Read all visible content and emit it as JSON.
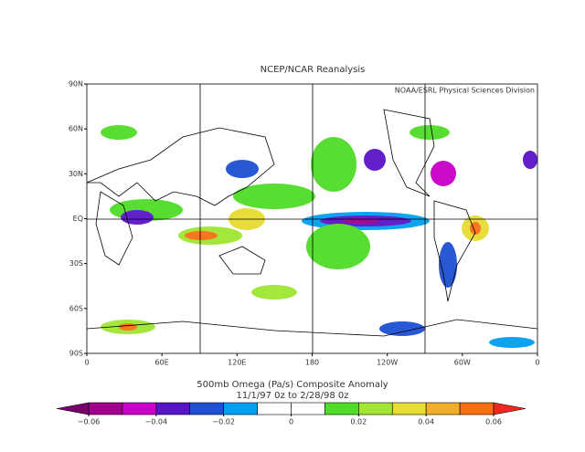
{
  "chart_data": {
    "type": "map",
    "title": "NCEP/NCAR Reanalysis",
    "credit": "NOAA/ESRL Physical Sciences Division",
    "subtitle": "500mb Omega (Pa/s)   Composite Anomaly",
    "period": "11/1/97 0z  to 2/28/98 0z",
    "xlim": [
      0,
      360
    ],
    "ylim": [
      -90,
      90
    ],
    "xticks": [
      0,
      {
        "value": 60,
        "label": "60E"
      },
      {
        "value": 120,
        "label": "120E"
      },
      180,
      {
        "value": 240,
        "label": "120W"
      },
      {
        "value": 300,
        "label": "60W"
      },
      {
        "value": 360,
        "label": "0"
      }
    ],
    "yticks": [
      {
        "value": -90,
        "label": "90S"
      },
      {
        "value": -60,
        "label": "60S"
      },
      {
        "value": -30,
        "label": "30S"
      },
      {
        "value": 0,
        "label": "EQ"
      },
      {
        "value": 30,
        "label": "30N"
      },
      {
        "value": 60,
        "label": "60N"
      },
      {
        "value": 90,
        "label": "90N"
      }
    ],
    "colorbar": {
      "levels": [
        -0.06,
        -0.05,
        -0.04,
        -0.03,
        -0.02,
        -0.01,
        0,
        0.01,
        0.02,
        0.03,
        0.04,
        0.05,
        0.06
      ],
      "colors": [
        "#a0008c",
        "#c800c8",
        "#5a14c8",
        "#1e50d2",
        "#00a0f0",
        "#ffffff",
        "#ffffff",
        "#50dc28",
        "#a0e632",
        "#e6dc32",
        "#f0af28",
        "#fa6e14"
      ],
      "under_color": "#78006e",
      "over_color": "#f0281e",
      "ticks": [
        {
          "value": -0.06,
          "label": "−0.06"
        },
        {
          "value": -0.04,
          "label": "−0.04"
        },
        {
          "value": -0.02,
          "label": "−0.02"
        },
        0,
        0.02,
        0.04,
        0.06
      ]
    }
  }
}
